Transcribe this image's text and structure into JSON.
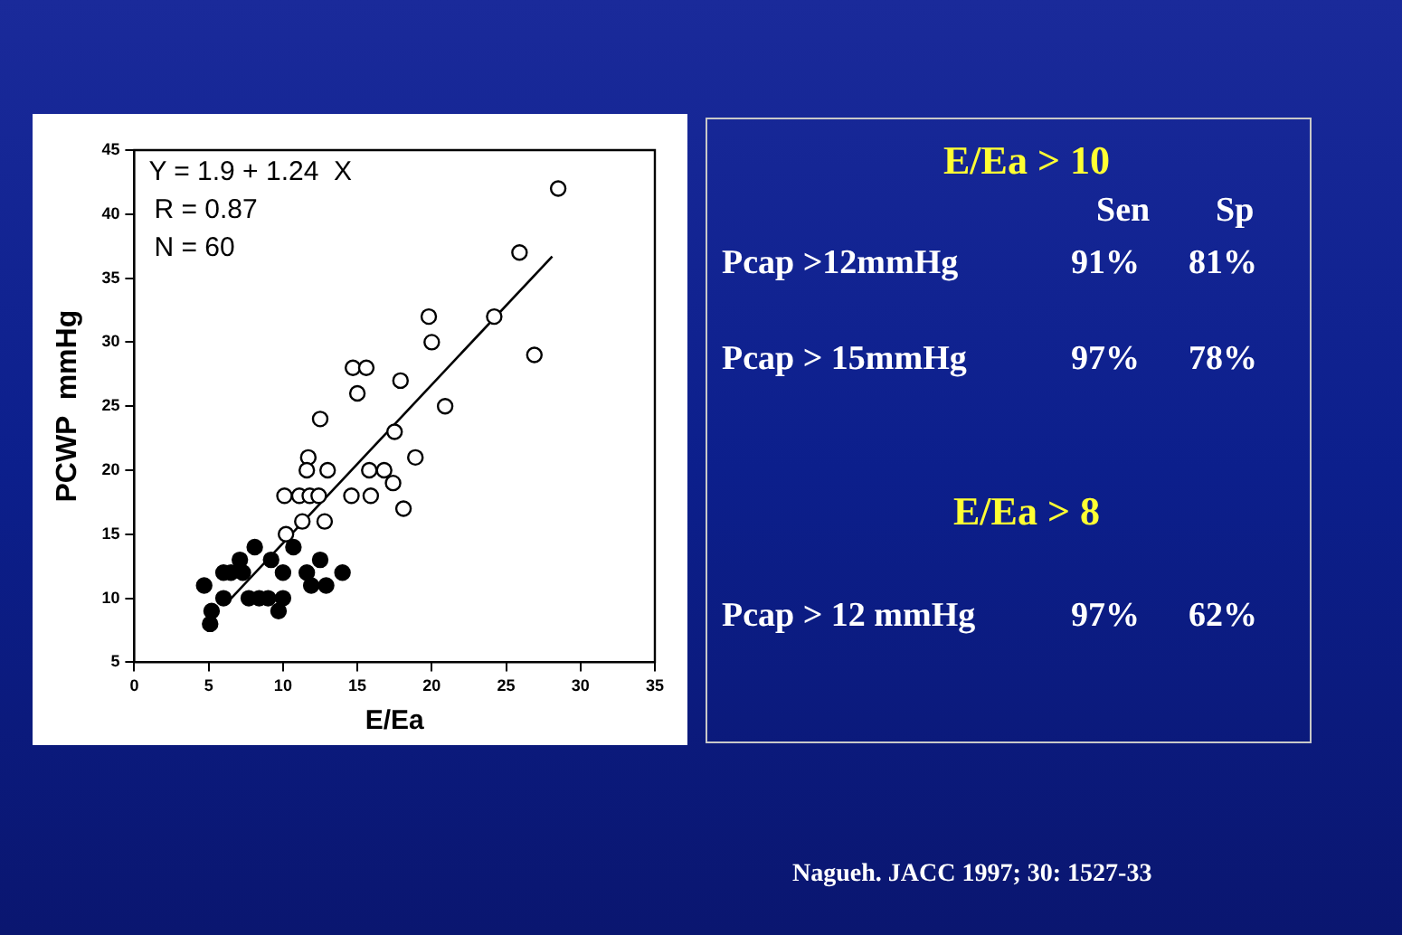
{
  "chart_data": [
    {
      "type": "scatter",
      "xlabel": "E/Ea",
      "ylabel": "PCWP  mmHg",
      "xlim": [
        0,
        35
      ],
      "xticks": [
        0,
        5,
        10,
        15,
        20,
        25,
        30,
        35
      ],
      "ylim": [
        5,
        45
      ],
      "yticks": [
        5,
        10,
        15,
        20,
        25,
        30,
        35,
        40,
        45
      ],
      "grid": false,
      "legend": false,
      "annotations": [
        "Y = 1.9 + 1.24  X",
        "R = 0.87",
        "N = 60"
      ],
      "series": [
        {
          "color": "#000000",
          "marker": "circle",
          "x": [
            4.7,
            5.2,
            5.1,
            6.0,
            6.0,
            6.5,
            7.1,
            7.3,
            7.7,
            8.1,
            8.4,
            9.0,
            9.2,
            9.7,
            10.0,
            10.0,
            10.7,
            11.6,
            11.9,
            12.5,
            12.9,
            14.0
          ],
          "values": [
            11,
            9,
            8,
            10,
            12,
            12,
            13,
            12,
            10,
            14,
            10,
            10,
            13,
            9,
            10,
            12,
            14,
            12,
            11,
            13,
            11,
            12
          ]
        },
        {
          "color": "#ffffff",
          "marker": "circle",
          "x": [
            10.1,
            10.2,
            11.3,
            11.1,
            11.8,
            12.4,
            11.7,
            11.6,
            12.5,
            13.0,
            12.8,
            14.6,
            14.7,
            15.6,
            15.0,
            15.8,
            15.9,
            16.8,
            17.4,
            17.5,
            17.9,
            18.1,
            18.9,
            19.8,
            20.0,
            20.9,
            24.2,
            25.9,
            26.9,
            28.5
          ],
          "values": [
            18,
            15,
            16,
            18,
            18,
            18,
            21,
            20,
            24,
            20,
            16,
            18,
            28,
            28,
            26,
            20,
            18,
            20,
            19,
            23,
            27,
            17,
            21,
            32,
            30,
            25,
            32,
            37,
            29,
            42
          ]
        },
        {
          "type": "line",
          "marker": "none",
          "color": "#000000",
          "x": [
            6.2,
            28.1
          ],
          "values": [
            9.6,
            36.7
          ]
        }
      ]
    },
    {
      "type": "other",
      "title": "E/Ea > 10",
      "subtitle": "E/Ea > 8",
      "annotations": [
        "Sen",
        "Sp",
        "Pcap >12mmHg",
        "91%",
        "81%",
        "Pcap > 15mmHg",
        "97%",
        "78%",
        "Pcap > 12 mmHg",
        "97%",
        "62%",
        "Nagueh. JACC 1997; 30: 1527-33"
      ]
    }
  ]
}
